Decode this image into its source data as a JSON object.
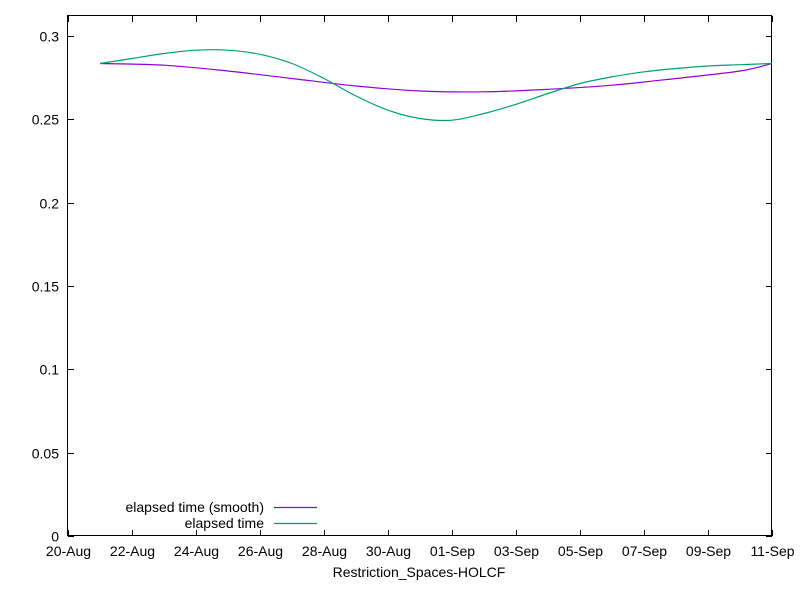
{
  "chart_data": {
    "type": "line",
    "title": "",
    "xlabel": "Restriction_Spaces-HOLCF",
    "ylabel": "",
    "x_tick_labels": [
      "20-Aug",
      "22-Aug",
      "24-Aug",
      "26-Aug",
      "28-Aug",
      "30-Aug",
      "01-Sep",
      "03-Sep",
      "05-Sep",
      "07-Sep",
      "09-Sep",
      "11-Sep"
    ],
    "y_tick_labels": [
      "0",
      "0.05",
      "0.1",
      "0.15",
      "0.2",
      "0.25",
      "0.3"
    ],
    "y_ticks": [
      0,
      0.05,
      0.1,
      0.15,
      0.2,
      0.25,
      0.3
    ],
    "xlim": [
      "2023-08-20",
      "2023-09-11"
    ],
    "ylim": [
      0,
      0.312
    ],
    "x_tick_step_days": 2,
    "grid": false,
    "legend_position": "bottom-left",
    "series": [
      {
        "name": "elapsed time (smooth)",
        "color": "#9400d3",
        "x": [
          "2023-08-21",
          "2023-08-23",
          "2023-08-25",
          "2023-08-27",
          "2023-08-29",
          "2023-08-31",
          "2023-09-02",
          "2023-09-04",
          "2023-09-06",
          "2023-09-08",
          "2023-09-10",
          "2023-09-11"
        ],
        "y": [
          0.2835,
          0.2825,
          0.279,
          0.2745,
          0.27,
          0.267,
          0.2665,
          0.268,
          0.2705,
          0.2745,
          0.279,
          0.2835
        ]
      },
      {
        "name": "elapsed time",
        "color": "#009e73",
        "x": [
          "2023-08-21",
          "2023-08-22",
          "2023-08-23",
          "2023-08-24",
          "2023-08-25",
          "2023-08-26",
          "2023-08-27",
          "2023-08-28",
          "2023-08-29",
          "2023-08-30",
          "2023-08-31",
          "2023-09-01",
          "2023-09-02",
          "2023-09-03",
          "2023-09-04",
          "2023-09-05",
          "2023-09-06",
          "2023-09-07",
          "2023-09-08",
          "2023-09-09",
          "2023-09-10",
          "2023-09-11"
        ],
        "y": [
          0.2835,
          0.2865,
          0.2895,
          0.2915,
          0.2915,
          0.289,
          0.2835,
          0.2745,
          0.264,
          0.2555,
          0.2505,
          0.2495,
          0.2535,
          0.259,
          0.2655,
          0.2715,
          0.2755,
          0.2785,
          0.2805,
          0.282,
          0.2828,
          0.2835
        ]
      }
    ]
  }
}
